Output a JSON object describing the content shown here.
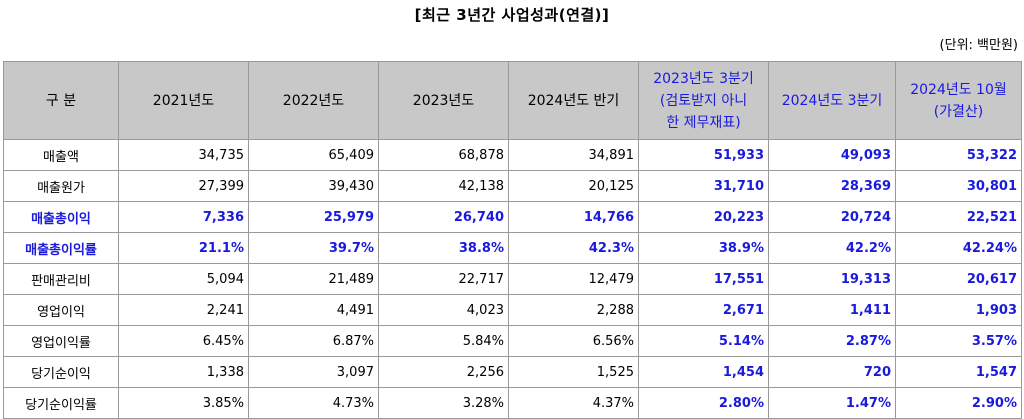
{
  "title": "[최근 3년간 사업성과(연결)]",
  "unit": "(단위: 백만원)",
  "columns": [
    "구 분",
    "2021년도",
    "2022년도",
    "2023년도",
    "2024년도 반기",
    "2023년도 3분기 (검토받지 아니한 제무재표)",
    "2024년도 3분기",
    "2024년도 10월 (가결산)"
  ],
  "rows": [
    {
      "label": "매출액",
      "cells": [
        "34,735",
        "65,409",
        "68,878",
        "34,891",
        "51,933",
        "49,093",
        "53,322"
      ]
    },
    {
      "label": "매출원가",
      "cells": [
        "27,399",
        "39,430",
        "42,138",
        "20,125",
        "31,710",
        "28,369",
        "30,801"
      ]
    },
    {
      "label": "매출총이익",
      "cells": [
        "7,336",
        "25,979",
        "26,740",
        "14,766",
        "20,223",
        "20,724",
        "22,521"
      ]
    },
    {
      "label": "매출총이익률",
      "cells": [
        "21.1%",
        "39.7%",
        "38.8%",
        "42.3%",
        "38.9%",
        "42.2%",
        "42.24%"
      ]
    },
    {
      "label": "판매관리비",
      "cells": [
        "5,094",
        "21,489",
        "22,717",
        "12,479",
        "17,551",
        "19,313",
        "20,617"
      ]
    },
    {
      "label": "영업이익",
      "cells": [
        "2,241",
        "4,491",
        "4,023",
        "2,288",
        "2,671",
        "1,411",
        "1,903"
      ]
    },
    {
      "label": "영업이익률",
      "cells": [
        "6.45%",
        "6.87%",
        "5.84%",
        "6.56%",
        "5.14%",
        "2.87%",
        "3.57%"
      ]
    },
    {
      "label": "당기순이익",
      "cells": [
        "1,338",
        "3,097",
        "2,256",
        "1,525",
        "1,454",
        "720",
        "1,547"
      ]
    },
    {
      "label": "당기순이익률",
      "cells": [
        "3.85%",
        "4.73%",
        "3.28%",
        "4.37%",
        "2.80%",
        "1.47%",
        "2.90%"
      ]
    }
  ],
  "colors": {
    "highlight": "#1a1adc",
    "header_bg": "#c8c8c8",
    "border": "#9a9a9a"
  }
}
